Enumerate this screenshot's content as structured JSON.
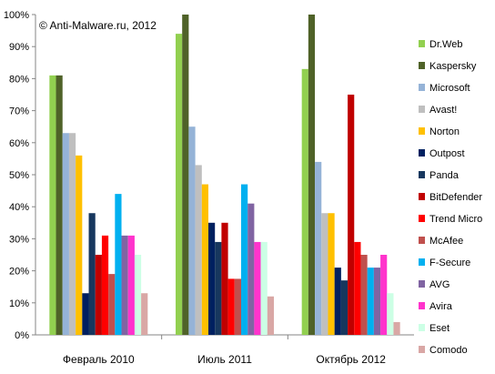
{
  "chart_data": {
    "type": "bar",
    "title": "",
    "annotation": "© Anti-Malware.ru,  2012",
    "xlabel": "",
    "ylabel": "",
    "ylim": [
      0,
      100
    ],
    "y_ticks": [
      "0%",
      "10%",
      "20%",
      "30%",
      "40%",
      "50%",
      "60%",
      "70%",
      "80%",
      "90%",
      "100%"
    ],
    "grid": false,
    "legend_position": "right",
    "categories": [
      "Февраль 2010",
      "Июль 2011",
      "Октябрь 2012"
    ],
    "series": [
      {
        "name": "Dr.Web",
        "color": "#92D050",
        "values": [
          81,
          94,
          83
        ]
      },
      {
        "name": "Kaspersky",
        "color": "#4F6228",
        "values": [
          81,
          100,
          100
        ]
      },
      {
        "name": "Microsoft",
        "color": "#95B3D7",
        "values": [
          63,
          65,
          54
        ]
      },
      {
        "name": "Avast!",
        "color": "#BFBFBF",
        "values": [
          63,
          53,
          38
        ]
      },
      {
        "name": "Norton",
        "color": "#FFC000",
        "values": [
          56,
          47,
          38
        ]
      },
      {
        "name": "Outpost",
        "color": "#002060",
        "values": [
          13,
          35,
          21
        ]
      },
      {
        "name": "Panda",
        "color": "#17375E",
        "values": [
          38,
          29,
          17
        ]
      },
      {
        "name": "BitDefender",
        "color": "#C00000",
        "values": [
          25,
          35,
          75
        ]
      },
      {
        "name": "Trend Micro",
        "color": "#FF0000",
        "values": [
          31,
          17.5,
          29
        ]
      },
      {
        "name": "McAfee",
        "color": "#C0504D",
        "values": [
          19,
          17.5,
          25
        ]
      },
      {
        "name": "F-Secure",
        "color": "#00B0F0",
        "values": [
          44,
          47,
          21
        ]
      },
      {
        "name": "AVG",
        "color": "#8064A2",
        "values": [
          31,
          41,
          21
        ]
      },
      {
        "name": "Avira",
        "color": "#FF33CC",
        "values": [
          31,
          29,
          25
        ]
      },
      {
        "name": "Eset",
        "color": "#CCFFE5",
        "values": [
          25,
          29,
          13
        ]
      },
      {
        "name": "Comodo",
        "color": "#D9A7A5",
        "values": [
          13,
          12,
          4
        ]
      }
    ]
  }
}
